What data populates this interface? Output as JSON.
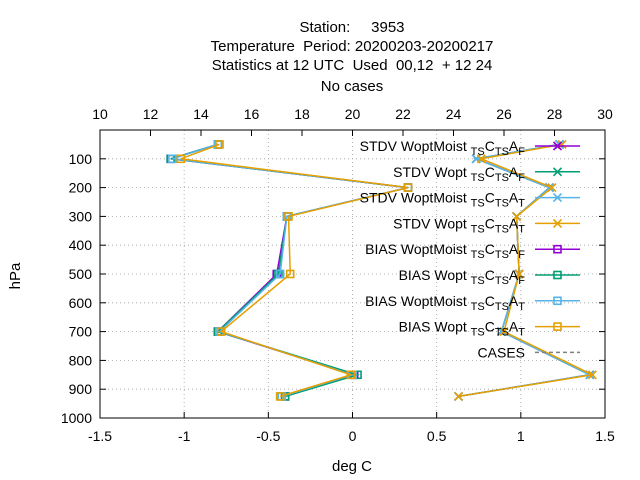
{
  "title_lines": [
    "Station:     3953",
    "Temperature  Period: 20200203-20200217",
    "Statistics at 12 UTC  Used  00,12  + 12 24",
    "No cases"
  ],
  "colors": {
    "purple": "#9400d3",
    "green": "#009e73",
    "blue": "#56b4e9",
    "orange": "#e69f00",
    "cases": "#808080",
    "grid": "#a0a0a0"
  },
  "chart_data": {
    "type": "line",
    "xlabel": "deg C",
    "ylabel": "hPa",
    "xlim": [
      -1.5,
      1.5
    ],
    "x2lim": [
      10,
      30
    ],
    "ylim": [
      1000,
      0
    ],
    "x_ticks": [
      "-1.5",
      "-1",
      "-0.5",
      "0",
      "0.5",
      "1",
      "1.5"
    ],
    "x2_ticks": [
      "10",
      "12",
      "14",
      "16",
      "18",
      "20",
      "22",
      "24",
      "26",
      "28",
      "30"
    ],
    "y_ticks": [
      "100",
      "200",
      "300",
      "400",
      "500",
      "600",
      "700",
      "800",
      "900",
      "1000"
    ],
    "grid": "dotted",
    "legend_position": "top-right",
    "levels": [
      50,
      100,
      200,
      300,
      500,
      700,
      850,
      925
    ],
    "series": [
      {
        "name": "STDV WoptMoist TS C TS A F",
        "legend": {
          "pre": "STDV WoptMoist",
          "subs": [
            [
              "TS",
              "C"
            ],
            [
              "TS",
              "A"
            ],
            [
              "F",
              ""
            ]
          ]
        },
        "color_key": "purple",
        "marker": "x",
        "axis": "top",
        "values": [
          28.2,
          24.9,
          27.8,
          26.5,
          26.6,
          25.9,
          29.4,
          24.2
        ]
      },
      {
        "name": "STDV Wopt TS C TS A F",
        "legend": {
          "pre": "STDV Wopt",
          "subs": [
            [
              "TS",
              "C"
            ],
            [
              "TS",
              "A"
            ],
            [
              "F",
              ""
            ]
          ]
        },
        "color_key": "green",
        "marker": "x",
        "axis": "top",
        "values": [
          28.2,
          24.9,
          27.8,
          26.5,
          26.6,
          25.9,
          29.4,
          24.2
        ]
      },
      {
        "name": "STDV WoptMoist TS C TS A T",
        "legend": {
          "pre": "STDV WoptMoist",
          "subs": [
            [
              "TS",
              "C"
            ],
            [
              "TS",
              "A"
            ],
            [
              "T",
              ""
            ]
          ]
        },
        "color_key": "blue",
        "marker": "x",
        "axis": "top",
        "values": [
          28.2,
          24.9,
          27.8,
          26.5,
          26.6,
          25.9,
          29.4,
          24.2
        ]
      },
      {
        "name": "STDV Wopt TS C TS A T",
        "legend": {
          "pre": "STDV Wopt",
          "subs": [
            [
              "TS",
              "C"
            ],
            [
              "TS",
              "A"
            ],
            [
              "T",
              ""
            ]
          ]
        },
        "color_key": "orange",
        "marker": "x",
        "axis": "top",
        "values": [
          28.3,
          25.1,
          27.9,
          26.5,
          26.6,
          26.0,
          29.5,
          24.2
        ]
      },
      {
        "name": "BIAS WoptMoist TS C TS A F",
        "legend": {
          "pre": "BIAS WoptMoist",
          "subs": [
            [
              "TS",
              "C"
            ],
            [
              "TS",
              "A"
            ],
            [
              "F",
              ""
            ]
          ]
        },
        "color_key": "purple",
        "marker": "square",
        "axis": "bottom",
        "values": [
          -0.8,
          -1.08,
          0.33,
          -0.39,
          -0.45,
          -0.8,
          0.01,
          -0.4
        ]
      },
      {
        "name": "BIAS Wopt TS C TS A F",
        "legend": {
          "pre": "BIAS Wopt",
          "subs": [
            [
              "TS",
              "C"
            ],
            [
              "TS",
              "A"
            ],
            [
              "F",
              ""
            ]
          ]
        },
        "color_key": "green",
        "marker": "square",
        "axis": "bottom",
        "values": [
          -0.8,
          -1.08,
          0.33,
          -0.39,
          -0.44,
          -0.8,
          0.03,
          -0.4
        ]
      },
      {
        "name": "BIAS WoptMoist TS C TS A T",
        "legend": {
          "pre": "BIAS WoptMoist",
          "subs": [
            [
              "TS",
              "C"
            ],
            [
              "TS",
              "A"
            ],
            [
              "T",
              ""
            ]
          ]
        },
        "color_key": "blue",
        "marker": "square",
        "axis": "bottom",
        "values": [
          -0.8,
          -1.07,
          0.33,
          -0.39,
          -0.43,
          -0.79,
          0.0,
          -0.42
        ]
      },
      {
        "name": "BIAS Wopt TS C TS A T",
        "legend": {
          "pre": "BIAS Wopt",
          "subs": [
            [
              "TS",
              "C"
            ],
            [
              "TS",
              "A"
            ],
            [
              "T",
              ""
            ]
          ]
        },
        "color_key": "orange",
        "marker": "square",
        "axis": "bottom",
        "values": [
          -0.79,
          -1.02,
          0.33,
          -0.38,
          -0.37,
          -0.78,
          -0.01,
          -0.43
        ]
      }
    ],
    "cases": {
      "name": "CASES",
      "legend": {
        "pre": "CASES",
        "subs": []
      },
      "color_key": "cases",
      "style": "dashed"
    }
  }
}
